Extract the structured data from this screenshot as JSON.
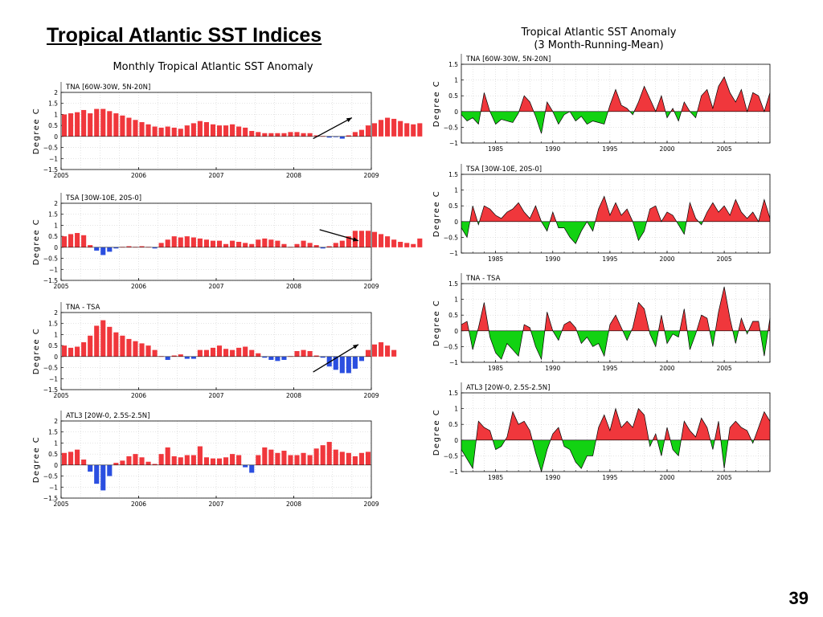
{
  "slide": {
    "title": "Tropical Atlantic SST Indices",
    "page_number": "39"
  },
  "colors": {
    "positive_monthly": "#f0373c",
    "negative_monthly": "#2b4fe0",
    "positive_running": "#f0373c",
    "negative_running": "#12d212",
    "arrow": "#000000"
  },
  "left_group": {
    "title": "Monthly Tropical Atlantic SST Anomaly"
  },
  "right_group": {
    "title": "Tropical Atlantic SST Anomaly",
    "subtitle": "(3 Month-Running-Mean)"
  },
  "chart_data": [
    {
      "type": "bar",
      "title": "TNA [60W-30W, 5N-20N]",
      "ylabel": "Degree C",
      "ylim": [
        -1.5,
        2
      ],
      "yticks": [
        "-1.5",
        "-1",
        "-0.5",
        "0",
        "0.5",
        "1",
        "1.5",
        "2"
      ],
      "xlim": [
        2005,
        2009
      ],
      "xticks": [
        "2005",
        "2006",
        "2007",
        "2008",
        "2009"
      ],
      "x_start": "2005-01",
      "values": [
        1.0,
        1.05,
        1.1,
        1.2,
        1.05,
        1.25,
        1.25,
        1.15,
        1.05,
        0.95,
        0.85,
        0.75,
        0.65,
        0.55,
        0.45,
        0.4,
        0.45,
        0.4,
        0.35,
        0.5,
        0.6,
        0.7,
        0.65,
        0.55,
        0.5,
        0.5,
        0.55,
        0.45,
        0.4,
        0.25,
        0.2,
        0.15,
        0.15,
        0.15,
        0.15,
        0.2,
        0.2,
        0.15,
        0.15,
        0.05,
        0.02,
        -0.05,
        -0.02,
        -0.1,
        0.05,
        0.2,
        0.3,
        0.5,
        0.6,
        0.75,
        0.85,
        0.8,
        0.7,
        0.6,
        0.55,
        0.6
      ],
      "arrow": {
        "from": [
          "2008-04",
          -0.1
        ],
        "to": [
          "2008-10",
          0.85
        ]
      }
    },
    {
      "type": "bar",
      "title": "TSA [30W-10E, 20S-0]",
      "ylabel": "Degree C",
      "ylim": [
        -1.5,
        2
      ],
      "yticks": [
        "-1.5",
        "-1",
        "-0.5",
        "0",
        "0.5",
        "1",
        "1.5",
        "2"
      ],
      "xlim": [
        2005,
        2009
      ],
      "xticks": [
        "2005",
        "2006",
        "2007",
        "2008",
        "2009"
      ],
      "x_start": "2005-01",
      "values": [
        0.5,
        0.6,
        0.65,
        0.55,
        0.1,
        -0.15,
        -0.35,
        -0.2,
        -0.05,
        0.02,
        0.05,
        0.02,
        0.05,
        0.02,
        -0.05,
        0.2,
        0.35,
        0.5,
        0.45,
        0.5,
        0.45,
        0.4,
        0.35,
        0.3,
        0.3,
        0.15,
        0.3,
        0.25,
        0.2,
        0.15,
        0.35,
        0.4,
        0.35,
        0.3,
        0.15,
        0.02,
        0.15,
        0.3,
        0.2,
        0.1,
        -0.05,
        0.05,
        0.2,
        0.3,
        0.5,
        0.75,
        0.75,
        0.75,
        0.7,
        0.6,
        0.5,
        0.35,
        0.25,
        0.2,
        0.15,
        0.4
      ],
      "arrow": {
        "from": [
          "2008-05",
          0.8
        ],
        "to": [
          "2008-11",
          0.3
        ]
      }
    },
    {
      "type": "bar",
      "title": "TNA - TSA",
      "ylabel": "Degree C",
      "ylim": [
        -1.5,
        2
      ],
      "yticks": [
        "-1.5",
        "-1",
        "-0.5",
        "0",
        "0.5",
        "1",
        "1.5",
        "2"
      ],
      "xlim": [
        2005,
        2009
      ],
      "xticks": [
        "2005",
        "2006",
        "2007",
        "2008",
        "2009"
      ],
      "x_start": "2005-01",
      "values": [
        0.5,
        0.4,
        0.45,
        0.65,
        0.95,
        1.4,
        1.65,
        1.35,
        1.1,
        0.95,
        0.8,
        0.7,
        0.6,
        0.5,
        0.3,
        0.02,
        -0.15,
        0.05,
        0.1,
        -0.1,
        -0.1,
        0.3,
        0.3,
        0.4,
        0.5,
        0.35,
        0.3,
        0.4,
        0.45,
        0.3,
        0.15,
        -0.05,
        -0.15,
        -0.2,
        -0.15,
        0.02,
        0.25,
        0.3,
        0.25,
        0.05,
        -0.05,
        -0.45,
        -0.6,
        -0.75,
        -0.75,
        -0.55,
        -0.2,
        0.3,
        0.55,
        0.65,
        0.5,
        0.3
      ],
      "arrow": {
        "from": [
          "2008-04",
          -0.7
        ],
        "to": [
          "2008-11",
          0.55
        ]
      }
    },
    {
      "type": "bar",
      "title": "ATL3 [20W-0, 2.5S-2.5N]",
      "ylabel": "Degree C",
      "ylim": [
        -1.5,
        2
      ],
      "yticks": [
        "-1.5",
        "-1",
        "-0.5",
        "0",
        "0.5",
        "1",
        "1.5",
        "2"
      ],
      "xlim": [
        2005,
        2009
      ],
      "xticks": [
        "2005",
        "2006",
        "2007",
        "2008",
        "2009"
      ],
      "x_start": "2005-01",
      "values": [
        0.55,
        0.6,
        0.7,
        0.25,
        -0.3,
        -0.85,
        -1.15,
        -0.5,
        0.1,
        0.2,
        0.4,
        0.5,
        0.35,
        0.15,
        0.05,
        0.5,
        0.8,
        0.4,
        0.35,
        0.45,
        0.45,
        0.85,
        0.35,
        0.3,
        0.3,
        0.35,
        0.5,
        0.45,
        -0.1,
        -0.35,
        0.45,
        0.8,
        0.7,
        0.55,
        0.65,
        0.45,
        0.45,
        0.55,
        0.45,
        0.75,
        0.9,
        1.05,
        0.7,
        0.6,
        0.55,
        0.4,
        0.55,
        0.6
      ]
    },
    {
      "type": "area",
      "title": "TNA [60W-30W, 5N-20N]",
      "ylabel": "Degree C",
      "ylim": [
        -1,
        1.5
      ],
      "yticks": [
        "-1",
        "-0.5",
        "0",
        "0.5",
        "1",
        "1.5"
      ],
      "xlim": [
        1982,
        2009
      ],
      "xticks": [
        "1985",
        "1990",
        "1995",
        "2000",
        "2005"
      ],
      "x": [
        1982,
        1982.5,
        1983,
        1983.5,
        1984,
        1984.5,
        1985,
        1985.5,
        1986,
        1986.5,
        1987,
        1987.5,
        1988,
        1988.5,
        1989,
        1989.5,
        1990,
        1990.5,
        1991,
        1991.5,
        1992,
        1992.5,
        1993,
        1993.5,
        1994,
        1994.5,
        1995,
        1995.5,
        1996,
        1996.5,
        1997,
        1997.5,
        1998,
        1998.5,
        1999,
        1999.5,
        2000,
        2000.5,
        2001,
        2001.5,
        2002,
        2002.5,
        2003,
        2003.5,
        2004,
        2004.5,
        2005,
        2005.5,
        2006,
        2006.5,
        2007,
        2007.5,
        2008,
        2008.5,
        2009
      ],
      "values": [
        -0.1,
        -0.3,
        -0.2,
        -0.4,
        0.6,
        0.0,
        -0.4,
        -0.25,
        -0.3,
        -0.35,
        -0.05,
        0.5,
        0.3,
        -0.15,
        -0.7,
        0.3,
        0.0,
        -0.4,
        -0.1,
        0.0,
        -0.3,
        -0.15,
        -0.4,
        -0.3,
        -0.35,
        -0.4,
        0.2,
        0.7,
        0.2,
        0.1,
        -0.1,
        0.3,
        0.8,
        0.4,
        0.0,
        0.5,
        -0.2,
        0.1,
        -0.3,
        0.3,
        0.0,
        -0.2,
        0.5,
        0.7,
        0.1,
        0.8,
        1.1,
        0.6,
        0.3,
        0.7,
        0.0,
        0.6,
        0.5,
        0.0,
        0.6
      ]
    },
    {
      "type": "area",
      "title": "TSA [30W-10E, 20S-0]",
      "ylabel": "Degree C",
      "ylim": [
        -1,
        1.5
      ],
      "yticks": [
        "-1",
        "-0.5",
        "0",
        "0.5",
        "1",
        "1.5"
      ],
      "xlim": [
        1982,
        2009
      ],
      "xticks": [
        "1985",
        "1990",
        "1995",
        "2000",
        "2005"
      ],
      "x": [
        1982,
        1982.5,
        1983,
        1983.5,
        1984,
        1984.5,
        1985,
        1985.5,
        1986,
        1986.5,
        1987,
        1987.5,
        1988,
        1988.5,
        1989,
        1989.5,
        1990,
        1990.5,
        1991,
        1991.5,
        1992,
        1992.5,
        1993,
        1993.5,
        1994,
        1994.5,
        1995,
        1995.5,
        1996,
        1996.5,
        1997,
        1997.5,
        1998,
        1998.5,
        1999,
        1999.5,
        2000,
        2000.5,
        2001,
        2001.5,
        2002,
        2002.5,
        2003,
        2003.5,
        2004,
        2004.5,
        2005,
        2005.5,
        2006,
        2006.5,
        2007,
        2007.5,
        2008,
        2008.5,
        2009
      ],
      "values": [
        -0.2,
        -0.5,
        0.5,
        -0.1,
        0.5,
        0.4,
        0.2,
        0.1,
        0.3,
        0.4,
        0.6,
        0.3,
        0.1,
        0.5,
        0.0,
        -0.3,
        0.3,
        -0.2,
        -0.2,
        -0.5,
        -0.7,
        -0.3,
        0.0,
        -0.3,
        0.4,
        0.8,
        0.2,
        0.6,
        0.2,
        0.4,
        0.0,
        -0.6,
        -0.3,
        0.4,
        0.5,
        0.0,
        0.3,
        0.2,
        -0.1,
        -0.4,
        0.6,
        0.1,
        -0.1,
        0.3,
        0.6,
        0.3,
        0.5,
        0.2,
        0.7,
        0.3,
        0.1,
        0.3,
        0.0,
        0.7,
        0.1
      ]
    },
    {
      "type": "area",
      "title": "TNA - TSA",
      "ylabel": "Degree C",
      "ylim": [
        -1,
        1.5
      ],
      "yticks": [
        "-1",
        "-0.5",
        "0",
        "0.5",
        "1",
        "1.5"
      ],
      "xlim": [
        1982,
        2009
      ],
      "xticks": [
        "1985",
        "1990",
        "1995",
        "2000",
        "2005"
      ],
      "x": [
        1982,
        1982.5,
        1983,
        1983.5,
        1984,
        1984.5,
        1985,
        1985.5,
        1986,
        1986.5,
        1987,
        1987.5,
        1988,
        1988.5,
        1989,
        1989.5,
        1990,
        1990.5,
        1991,
        1991.5,
        1992,
        1992.5,
        1993,
        1993.5,
        1994,
        1994.5,
        1995,
        1995.5,
        1996,
        1996.5,
        1997,
        1997.5,
        1998,
        1998.5,
        1999,
        1999.5,
        2000,
        2000.5,
        2001,
        2001.5,
        2002,
        2002.5,
        2003,
        2003.5,
        2004,
        2004.5,
        2005,
        2005.5,
        2006,
        2006.5,
        2007,
        2007.5,
        2008,
        2008.5,
        2009
      ],
      "values": [
        0.2,
        0.3,
        -0.6,
        0.1,
        0.9,
        -0.2,
        -0.7,
        -0.9,
        -0.4,
        -0.6,
        -0.8,
        0.2,
        0.1,
        -0.5,
        -0.9,
        0.6,
        0.0,
        -0.3,
        0.2,
        0.3,
        0.1,
        -0.4,
        -0.2,
        -0.5,
        -0.4,
        -0.8,
        0.2,
        0.5,
        0.1,
        -0.3,
        0.1,
        0.9,
        0.7,
        -0.1,
        -0.5,
        0.5,
        -0.4,
        -0.1,
        -0.2,
        0.7,
        -0.6,
        -0.1,
        0.5,
        0.4,
        -0.5,
        0.6,
        1.4,
        0.4,
        -0.4,
        0.4,
        -0.1,
        0.3,
        0.3,
        -0.8,
        0.4
      ]
    },
    {
      "type": "area",
      "title": "ATL3 [20W-0, 2.5S-2.5N]",
      "ylabel": "Degree C",
      "ylim": [
        -1,
        1.5
      ],
      "yticks": [
        "-1",
        "-0.5",
        "0",
        "0.5",
        "1",
        "1.5"
      ],
      "xlim": [
        1982,
        2009
      ],
      "xticks": [
        "1985",
        "1990",
        "1995",
        "2000",
        "2005"
      ],
      "x": [
        1982,
        1982.5,
        1983,
        1983.5,
        1984,
        1984.5,
        1985,
        1985.5,
        1986,
        1986.5,
        1987,
        1987.5,
        1988,
        1988.5,
        1989,
        1989.5,
        1990,
        1990.5,
        1991,
        1991.5,
        1992,
        1992.5,
        1993,
        1993.5,
        1994,
        1994.5,
        1995,
        1995.5,
        1996,
        1996.5,
        1997,
        1997.5,
        1998,
        1998.5,
        1999,
        1999.5,
        2000,
        2000.5,
        2001,
        2001.5,
        2002,
        2002.5,
        2003,
        2003.5,
        2004,
        2004.5,
        2005,
        2005.5,
        2006,
        2006.5,
        2007,
        2007.5,
        2008,
        2008.5,
        2009
      ],
      "values": [
        -0.3,
        -0.6,
        -0.9,
        0.6,
        0.4,
        0.3,
        -0.3,
        -0.2,
        0.1,
        0.9,
        0.5,
        0.6,
        0.3,
        -0.4,
        -1.0,
        -0.3,
        0.2,
        0.4,
        -0.2,
        -0.3,
        -0.7,
        -0.9,
        -0.5,
        -0.5,
        0.4,
        0.8,
        0.3,
        1.0,
        0.4,
        0.6,
        0.4,
        1.0,
        0.8,
        -0.2,
        0.2,
        -0.5,
        0.4,
        -0.3,
        -0.5,
        0.6,
        0.3,
        0.1,
        0.7,
        0.4,
        -0.3,
        0.6,
        -0.9,
        0.4,
        0.6,
        0.4,
        0.3,
        -0.1,
        0.4,
        0.9,
        0.6
      ]
    }
  ]
}
